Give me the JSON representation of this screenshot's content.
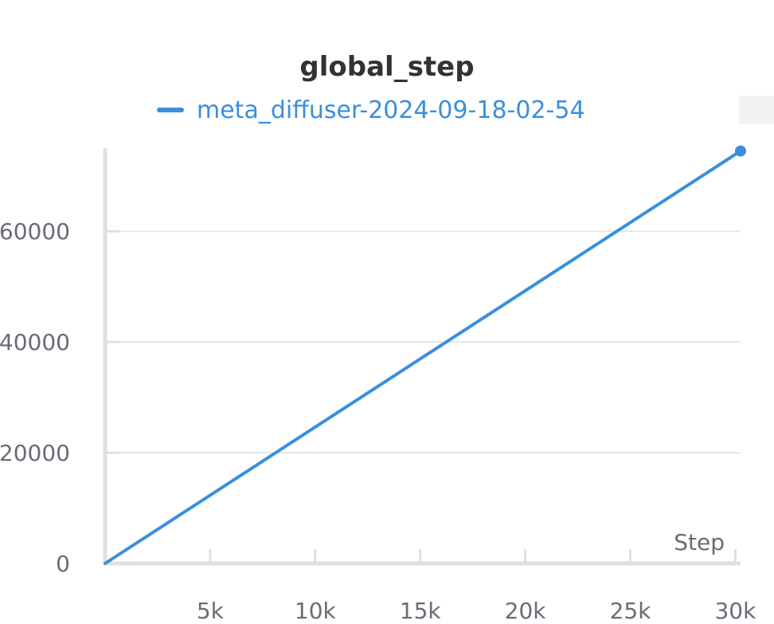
{
  "chart_data": {
    "type": "line",
    "title": "global_step",
    "xlabel": "Step",
    "ylabel": "",
    "xlim": [
      0,
      30250
    ],
    "ylim": [
      0,
      75000
    ],
    "xticks": [
      5000,
      10000,
      15000,
      20000,
      25000,
      30000
    ],
    "xtick_labels": [
      "5k",
      "10k",
      "15k",
      "20k",
      "25k",
      "30k"
    ],
    "yticks": [
      0,
      20000,
      40000,
      60000
    ],
    "ytick_labels": [
      "0",
      "20000",
      "40000",
      "60000"
    ],
    "grid": true,
    "legend_position": "top",
    "series": [
      {
        "name": "meta_diffuser-2024-09-18-02-54",
        "color": "#3a8fdc",
        "x": [
          0,
          30250
        ],
        "y": [
          0,
          74500
        ]
      }
    ]
  },
  "colors": {
    "line": "#3a8fdc",
    "grid": "#e6e6e6",
    "axis": "#e0e0e0",
    "text": "#6b6b76",
    "title": "#333333"
  }
}
